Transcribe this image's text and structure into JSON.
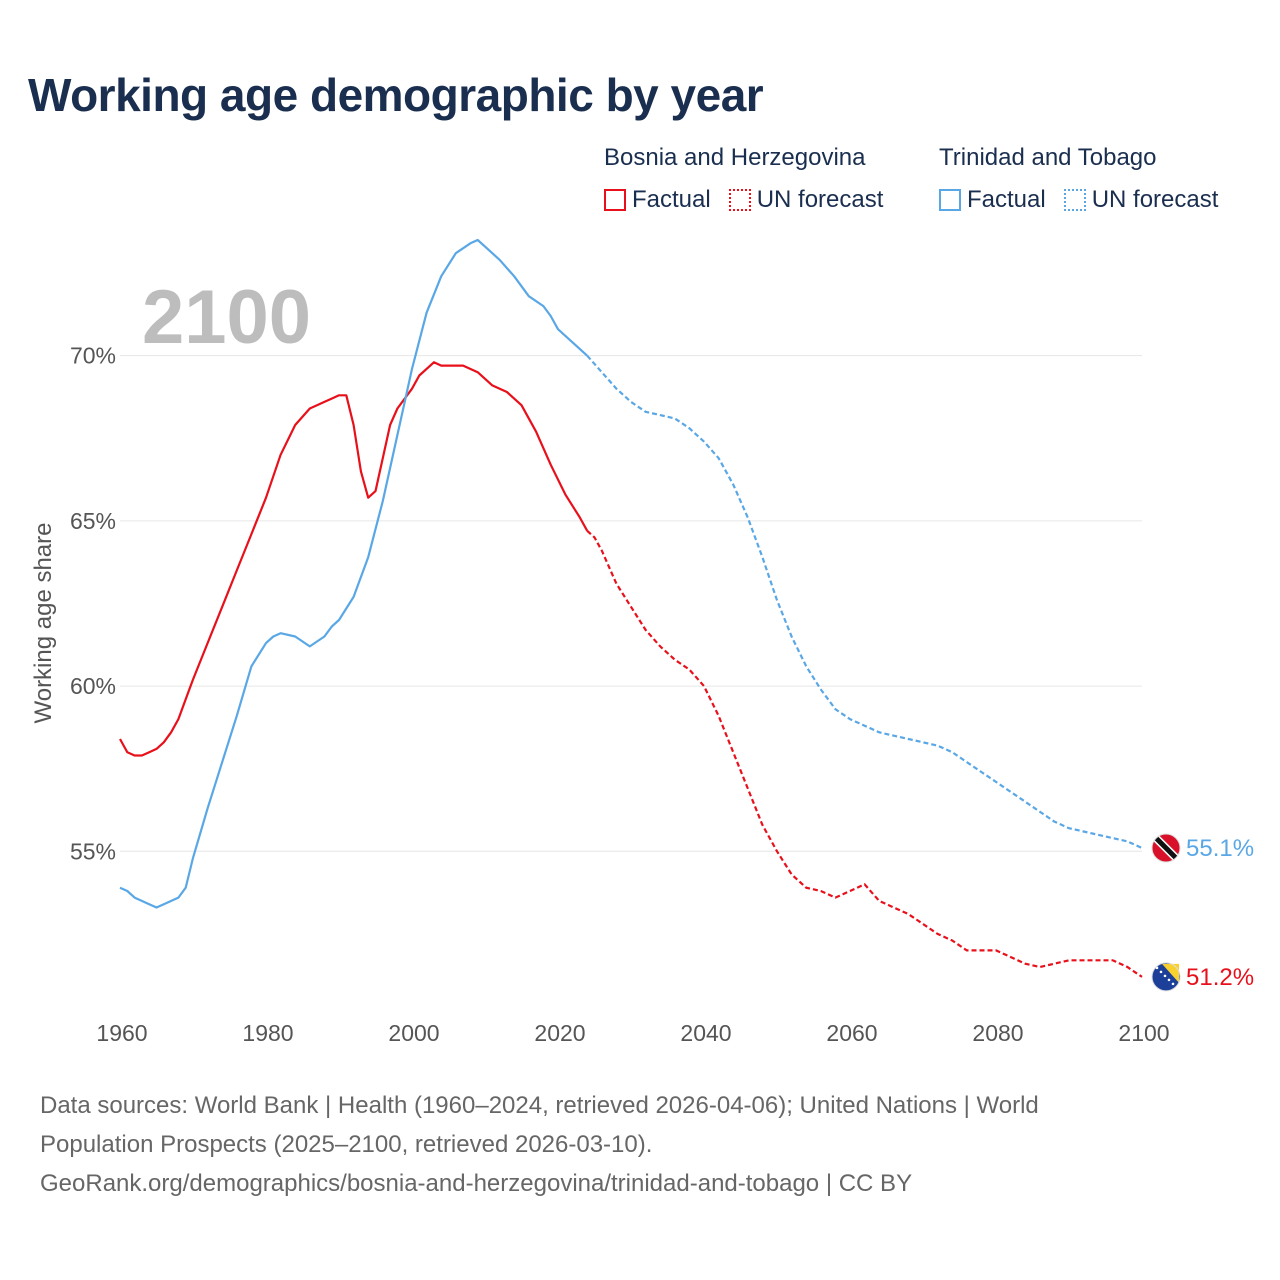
{
  "title": "Working age demographic by year",
  "legend": {
    "groups": [
      {
        "name": "Bosnia and Herzegovina",
        "factual_label": "Factual",
        "forecast_label": "UN forecast",
        "color": "#e8101a"
      },
      {
        "name": "Trinidad and Tobago",
        "factual_label": "Factual",
        "forecast_label": "UN forecast",
        "color": "#5aa7e6"
      }
    ]
  },
  "year_watermark": "2100",
  "footer": {
    "line1": "Data sources: World Bank | Health (1960–2024, retrieved 2026-04-06); United Nations | World",
    "line2": "Population Prospects (2025–2100, retrieved 2026-03-10).",
    "line3": "GeoRank.org/demographics/bosnia-and-herzegovina/trinidad-and-tobago | CC BY"
  },
  "chart_data": {
    "type": "line",
    "title": "Working age demographic by year",
    "xlabel": "",
    "ylabel": "Working age share",
    "xlim": [
      1960,
      2100
    ],
    "ylim": [
      50.5,
      73.5
    ],
    "x_ticks": [
      1960,
      1980,
      2000,
      2020,
      2040,
      2060,
      2080,
      2100
    ],
    "y_ticks": [
      55,
      60,
      65,
      70
    ],
    "y_tick_labels": [
      "55%",
      "60%",
      "65%",
      "70%"
    ],
    "grid": true,
    "forecast_start_year": 2024,
    "series": [
      {
        "name": "Bosnia and Herzegovina",
        "color": "#e8101a",
        "end_label": "51.2%",
        "flag": "bosnia-flag-icon",
        "points": [
          [
            1960,
            58.4
          ],
          [
            1961,
            58.0
          ],
          [
            1962,
            57.9
          ],
          [
            1963,
            57.9
          ],
          [
            1964,
            58.0
          ],
          [
            1965,
            58.1
          ],
          [
            1966,
            58.3
          ],
          [
            1967,
            58.6
          ],
          [
            1968,
            59.0
          ],
          [
            1969,
            59.6
          ],
          [
            1970,
            60.2
          ],
          [
            1972,
            61.3
          ],
          [
            1974,
            62.4
          ],
          [
            1976,
            63.5
          ],
          [
            1978,
            64.6
          ],
          [
            1980,
            65.7
          ],
          [
            1982,
            67.0
          ],
          [
            1984,
            67.9
          ],
          [
            1986,
            68.4
          ],
          [
            1988,
            68.6
          ],
          [
            1989,
            68.7
          ],
          [
            1990,
            68.8
          ],
          [
            1991,
            68.8
          ],
          [
            1992,
            67.9
          ],
          [
            1993,
            66.5
          ],
          [
            1994,
            65.7
          ],
          [
            1995,
            65.9
          ],
          [
            1996,
            66.9
          ],
          [
            1997,
            67.9
          ],
          [
            1998,
            68.4
          ],
          [
            2000,
            69.0
          ],
          [
            2001,
            69.4
          ],
          [
            2003,
            69.8
          ],
          [
            2004,
            69.7
          ],
          [
            2007,
            69.7
          ],
          [
            2009,
            69.5
          ],
          [
            2011,
            69.1
          ],
          [
            2013,
            68.9
          ],
          [
            2015,
            68.5
          ],
          [
            2017,
            67.7
          ],
          [
            2019,
            66.7
          ],
          [
            2021,
            65.8
          ],
          [
            2023,
            65.1
          ],
          [
            2024,
            64.7
          ],
          [
            2025,
            64.5
          ],
          [
            2026,
            64.1
          ],
          [
            2028,
            63.1
          ],
          [
            2030,
            62.4
          ],
          [
            2032,
            61.7
          ],
          [
            2034,
            61.2
          ],
          [
            2036,
            60.8
          ],
          [
            2038,
            60.5
          ],
          [
            2040,
            60.0
          ],
          [
            2042,
            59.1
          ],
          [
            2044,
            58.0
          ],
          [
            2046,
            56.9
          ],
          [
            2048,
            55.8
          ],
          [
            2050,
            55.0
          ],
          [
            2052,
            54.3
          ],
          [
            2054,
            53.9
          ],
          [
            2056,
            53.8
          ],
          [
            2058,
            53.6
          ],
          [
            2060,
            53.8
          ],
          [
            2062,
            54.0
          ],
          [
            2064,
            53.5
          ],
          [
            2066,
            53.3
          ],
          [
            2068,
            53.1
          ],
          [
            2070,
            52.8
          ],
          [
            2072,
            52.5
          ],
          [
            2074,
            52.3
          ],
          [
            2076,
            52.0
          ],
          [
            2080,
            52.0
          ],
          [
            2082,
            51.8
          ],
          [
            2084,
            51.6
          ],
          [
            2086,
            51.5
          ],
          [
            2088,
            51.6
          ],
          [
            2090,
            51.7
          ],
          [
            2096,
            51.7
          ],
          [
            2098,
            51.5
          ],
          [
            2100,
            51.2
          ]
        ]
      },
      {
        "name": "Trinidad and Tobago",
        "color": "#5aa7e6",
        "end_label": "55.1%",
        "flag": "trinidad-flag-icon",
        "points": [
          [
            1960,
            53.9
          ],
          [
            1961,
            53.8
          ],
          [
            1962,
            53.6
          ],
          [
            1964,
            53.4
          ],
          [
            1965,
            53.3
          ],
          [
            1966,
            53.4
          ],
          [
            1968,
            53.6
          ],
          [
            1969,
            53.9
          ],
          [
            1970,
            54.8
          ],
          [
            1972,
            56.3
          ],
          [
            1974,
            57.7
          ],
          [
            1976,
            59.1
          ],
          [
            1978,
            60.6
          ],
          [
            1980,
            61.3
          ],
          [
            1981,
            61.5
          ],
          [
            1982,
            61.6
          ],
          [
            1984,
            61.5
          ],
          [
            1986,
            61.2
          ],
          [
            1988,
            61.5
          ],
          [
            1989,
            61.8
          ],
          [
            1990,
            62.0
          ],
          [
            1992,
            62.7
          ],
          [
            1994,
            63.9
          ],
          [
            1996,
            65.6
          ],
          [
            1998,
            67.6
          ],
          [
            2000,
            69.6
          ],
          [
            2002,
            71.3
          ],
          [
            2004,
            72.4
          ],
          [
            2006,
            73.1
          ],
          [
            2008,
            73.4
          ],
          [
            2009,
            73.5
          ],
          [
            2010,
            73.3
          ],
          [
            2012,
            72.9
          ],
          [
            2014,
            72.4
          ],
          [
            2016,
            71.8
          ],
          [
            2018,
            71.5
          ],
          [
            2019,
            71.2
          ],
          [
            2020,
            70.8
          ],
          [
            2022,
            70.4
          ],
          [
            2024,
            70.0
          ],
          [
            2026,
            69.5
          ],
          [
            2028,
            69.0
          ],
          [
            2030,
            68.6
          ],
          [
            2032,
            68.3
          ],
          [
            2034,
            68.2
          ],
          [
            2036,
            68.1
          ],
          [
            2038,
            67.8
          ],
          [
            2040,
            67.4
          ],
          [
            2042,
            66.9
          ],
          [
            2044,
            66.1
          ],
          [
            2046,
            65.1
          ],
          [
            2048,
            63.9
          ],
          [
            2050,
            62.6
          ],
          [
            2052,
            61.5
          ],
          [
            2054,
            60.6
          ],
          [
            2056,
            59.9
          ],
          [
            2058,
            59.3
          ],
          [
            2060,
            59.0
          ],
          [
            2062,
            58.8
          ],
          [
            2064,
            58.6
          ],
          [
            2066,
            58.5
          ],
          [
            2068,
            58.4
          ],
          [
            2070,
            58.3
          ],
          [
            2072,
            58.2
          ],
          [
            2074,
            58.0
          ],
          [
            2076,
            57.7
          ],
          [
            2078,
            57.4
          ],
          [
            2080,
            57.1
          ],
          [
            2082,
            56.8
          ],
          [
            2084,
            56.5
          ],
          [
            2086,
            56.2
          ],
          [
            2088,
            55.9
          ],
          [
            2090,
            55.7
          ],
          [
            2092,
            55.6
          ],
          [
            2094,
            55.5
          ],
          [
            2096,
            55.4
          ],
          [
            2098,
            55.3
          ],
          [
            2100,
            55.1
          ]
        ]
      }
    ]
  }
}
